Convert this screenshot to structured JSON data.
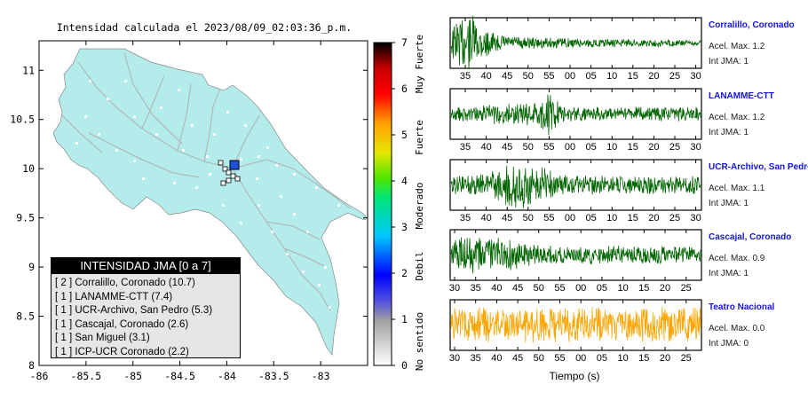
{
  "map": {
    "title": "Intensidad calculada el 2023/08/09_02:03:36_p.m.",
    "x_ticks": [
      "-86",
      "-85.5",
      "-85",
      "-84.5",
      "-84",
      "-83.5",
      "-83"
    ],
    "y_ticks": [
      "11",
      "10.5",
      "10",
      "9.5",
      "9",
      "8.5",
      "8"
    ],
    "xlim": [
      -86,
      -82.5
    ],
    "ylim": [
      8,
      11.3
    ],
    "land_color": "#b4ecec",
    "epicenter_color": "#1e50dc"
  },
  "colorbar": {
    "ticks": [
      "0",
      "1",
      "2",
      "3",
      "4",
      "5",
      "6",
      "7"
    ],
    "range": [
      0,
      7
    ],
    "labels": [
      "No sentido",
      "Debil",
      "Moderado",
      "Fuerte",
      "Muy Fuerte"
    ]
  },
  "legend": {
    "title": "INTENSIDAD JMA [0 a 7]",
    "items": [
      {
        "level": "[ 2 ]",
        "name": "Corralillo, Coronado (10.7)"
      },
      {
        "level": "[ 1 ]",
        "name": "LANAMME-CTT (7.4)"
      },
      {
        "level": "[ 1 ]",
        "name": "UCR-Archivo, San Pedro (5.3)"
      },
      {
        "level": "[ 1 ]",
        "name": "Cascajal, Coronado (2.6)"
      },
      {
        "level": "[ 1 ]",
        "name": "San Miguel (3.1)"
      },
      {
        "level": "[ 1 ]",
        "name": "ICP-UCR Coronado (2.2)"
      }
    ]
  },
  "waveforms": {
    "xlabel": "Tiempo (s)",
    "panels": [
      {
        "station": "Corralillo, Coronado",
        "acel": "Acel. Max. 1.2",
        "int": "Int JMA: 1",
        "color": "#006400",
        "ticks": [
          "35",
          "40",
          "45",
          "50",
          "55",
          "00",
          "05",
          "10",
          "15",
          "20",
          "25",
          "30"
        ]
      },
      {
        "station": "LANAMME-CTT",
        "acel": "Acel. Max. 1.2",
        "int": "Int JMA: 1",
        "color": "#006400",
        "ticks": [
          "35",
          "40",
          "45",
          "50",
          "55",
          "00",
          "05",
          "10",
          "15",
          "20",
          "25",
          "30"
        ]
      },
      {
        "station": "UCR-Archivo, San Pedro",
        "acel": "Acel. Max. 1.1",
        "int": "Int JMA: 1",
        "color": "#006400",
        "ticks": [
          "35",
          "40",
          "45",
          "50",
          "55",
          "00",
          "05",
          "10",
          "15",
          "20",
          "25",
          "30"
        ]
      },
      {
        "station": "Cascajal, Coronado",
        "acel": "Acel. Max. 0.9",
        "int": "Int JMA: 1",
        "color": "#006400",
        "ticks": [
          "30",
          "35",
          "40",
          "45",
          "50",
          "55",
          "00",
          "05",
          "10",
          "15",
          "20",
          "25"
        ]
      },
      {
        "station": "Teatro Nacional",
        "acel": "Acel. Max. 0.0",
        "int": "Int JMA: 0",
        "color": "#ffa500",
        "ticks": [
          "30",
          "35",
          "40",
          "45",
          "50",
          "55",
          "00",
          "05",
          "10",
          "15",
          "20",
          "25"
        ]
      }
    ]
  }
}
